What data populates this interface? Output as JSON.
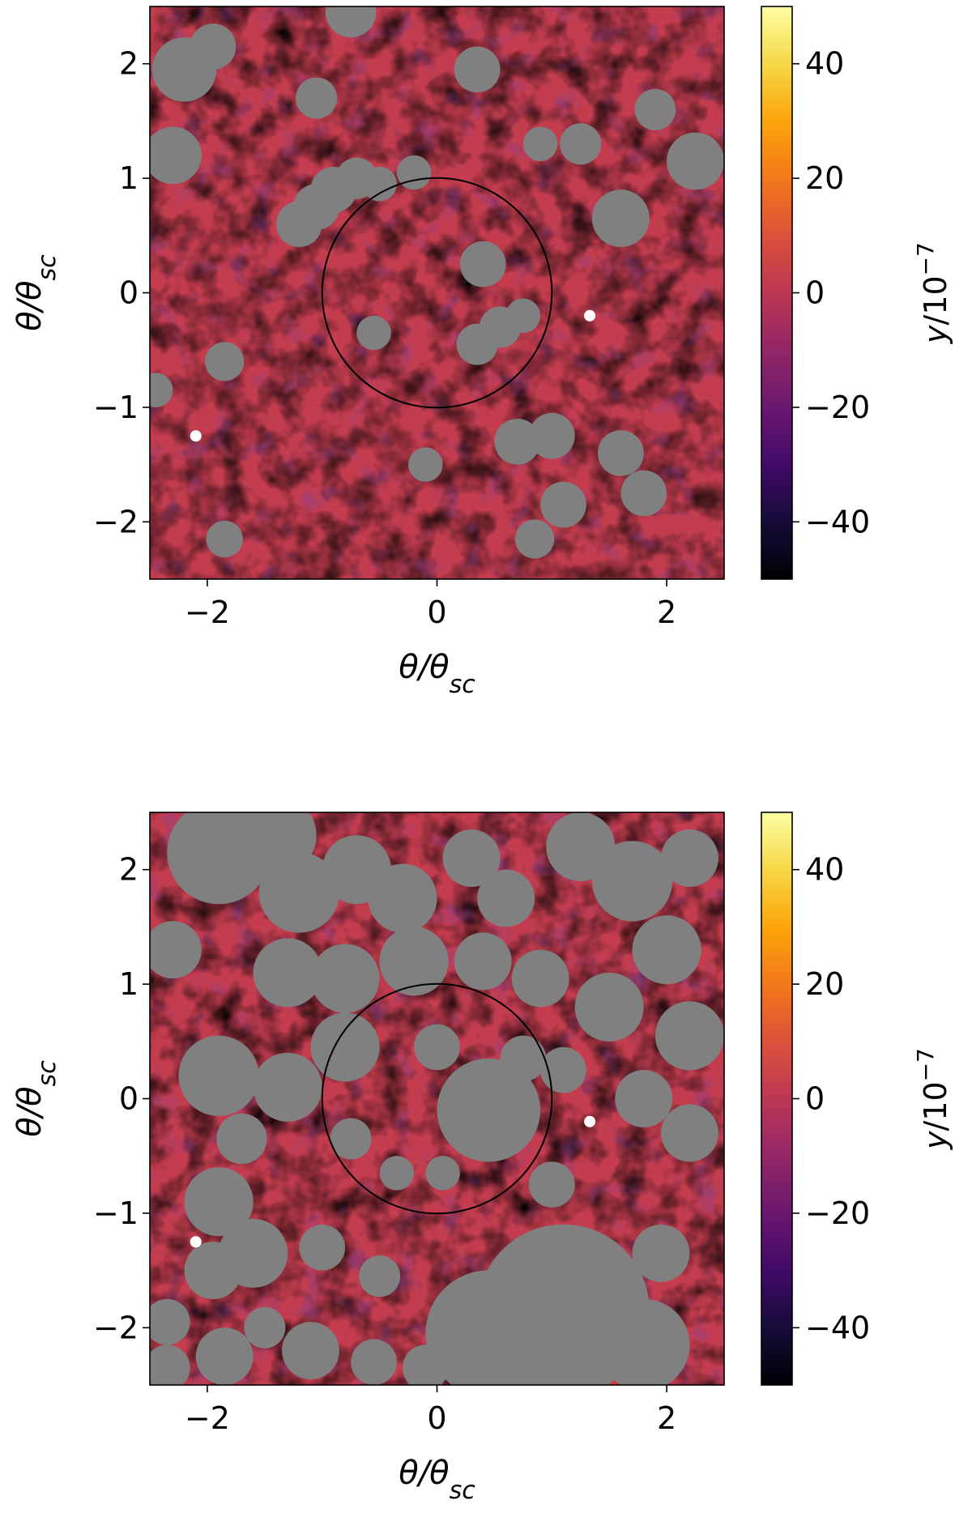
{
  "chart_data": [
    {
      "type": "heatmap",
      "panel": "top",
      "xlabel": "θ/θ_sc",
      "ylabel": "θ/θ_sc",
      "xlim": [
        -2.5,
        2.5
      ],
      "ylim": [
        -2.5,
        2.5
      ],
      "xticks": [
        -2,
        0,
        2
      ],
      "yticks": [
        -2,
        -1,
        0,
        1,
        2
      ],
      "colorbar": {
        "label": "y/10^-7",
        "range": [
          -50,
          50
        ],
        "ticks": [
          -40,
          -20,
          0,
          20,
          40
        ],
        "colormap": "inferno"
      },
      "circle": {
        "center": [
          0,
          0
        ],
        "radius": 1.0,
        "color": "#000000"
      },
      "mask_color": "#808080",
      "masks": [
        {
          "x": -2.2,
          "y": 1.95,
          "r": 0.28
        },
        {
          "x": -1.95,
          "y": 2.15,
          "r": 0.2
        },
        {
          "x": -1.05,
          "y": 1.7,
          "r": 0.18
        },
        {
          "x": -0.75,
          "y": 2.45,
          "r": 0.22
        },
        {
          "x": 0.35,
          "y": 1.95,
          "r": 0.2
        },
        {
          "x": 0.9,
          "y": 1.3,
          "r": 0.15
        },
        {
          "x": 1.25,
          "y": 1.3,
          "r": 0.18
        },
        {
          "x": 1.9,
          "y": 1.6,
          "r": 0.18
        },
        {
          "x": 2.25,
          "y": 1.15,
          "r": 0.25
        },
        {
          "x": -2.3,
          "y": 1.2,
          "r": 0.25
        },
        {
          "x": -1.2,
          "y": 0.6,
          "r": 0.2
        },
        {
          "x": -1.05,
          "y": 0.75,
          "r": 0.2
        },
        {
          "x": -0.9,
          "y": 0.9,
          "r": 0.2
        },
        {
          "x": -0.7,
          "y": 1.0,
          "r": 0.18
        },
        {
          "x": -0.5,
          "y": 0.95,
          "r": 0.15
        },
        {
          "x": -0.2,
          "y": 1.05,
          "r": 0.15
        },
        {
          "x": 0.4,
          "y": 0.25,
          "r": 0.2
        },
        {
          "x": 1.6,
          "y": 0.65,
          "r": 0.25
        },
        {
          "x": -0.55,
          "y": -0.35,
          "r": 0.15
        },
        {
          "x": 0.35,
          "y": -0.45,
          "r": 0.18
        },
        {
          "x": 0.55,
          "y": -0.3,
          "r": 0.18
        },
        {
          "x": 0.75,
          "y": -0.2,
          "r": 0.15
        },
        {
          "x": -1.85,
          "y": -0.6,
          "r": 0.17
        },
        {
          "x": -2.45,
          "y": -0.85,
          "r": 0.15
        },
        {
          "x": 0.7,
          "y": -1.3,
          "r": 0.2
        },
        {
          "x": 1.0,
          "y": -1.25,
          "r": 0.2
        },
        {
          "x": -0.1,
          "y": -1.5,
          "r": 0.15
        },
        {
          "x": 1.6,
          "y": -1.4,
          "r": 0.2
        },
        {
          "x": 1.8,
          "y": -1.75,
          "r": 0.2
        },
        {
          "x": 1.1,
          "y": -1.85,
          "r": 0.2
        },
        {
          "x": -1.85,
          "y": -2.15,
          "r": 0.16
        },
        {
          "x": 0.85,
          "y": -2.15,
          "r": 0.17
        }
      ],
      "white_spots": [
        {
          "x": 1.33,
          "y": -0.2
        },
        {
          "x": -2.1,
          "y": -1.25
        }
      ]
    },
    {
      "type": "heatmap",
      "panel": "bottom",
      "xlabel": "θ/θ_sc",
      "ylabel": "θ/θ_sc",
      "xlim": [
        -2.5,
        2.5
      ],
      "ylim": [
        -2.5,
        2.5
      ],
      "xticks": [
        -2,
        0,
        2
      ],
      "yticks": [
        -2,
        -1,
        0,
        1,
        2
      ],
      "colorbar": {
        "label": "y/10^-7",
        "range": [
          -50,
          50
        ],
        "ticks": [
          -40,
          -20,
          0,
          20,
          40
        ],
        "colormap": "inferno"
      },
      "circle": {
        "center": [
          0,
          0
        ],
        "radius": 1.0,
        "color": "#000000"
      },
      "mask_color": "#808080",
      "masks": [
        {
          "x": -1.9,
          "y": 2.15,
          "r": 0.45
        },
        {
          "x": -1.4,
          "y": 2.3,
          "r": 0.35
        },
        {
          "x": -1.2,
          "y": 1.8,
          "r": 0.35
        },
        {
          "x": -0.7,
          "y": 2.0,
          "r": 0.3
        },
        {
          "x": -0.3,
          "y": 1.75,
          "r": 0.3
        },
        {
          "x": 0.3,
          "y": 2.1,
          "r": 0.25
        },
        {
          "x": 0.6,
          "y": 1.75,
          "r": 0.25
        },
        {
          "x": 1.25,
          "y": 2.2,
          "r": 0.3
        },
        {
          "x": 1.7,
          "y": 1.9,
          "r": 0.35
        },
        {
          "x": 2.2,
          "y": 2.1,
          "r": 0.25
        },
        {
          "x": 2.0,
          "y": 1.3,
          "r": 0.3
        },
        {
          "x": -2.3,
          "y": 1.3,
          "r": 0.25
        },
        {
          "x": -1.3,
          "y": 1.1,
          "r": 0.3
        },
        {
          "x": -0.8,
          "y": 1.05,
          "r": 0.3
        },
        {
          "x": -0.2,
          "y": 1.2,
          "r": 0.3
        },
        {
          "x": 0.4,
          "y": 1.2,
          "r": 0.25
        },
        {
          "x": 0.9,
          "y": 1.05,
          "r": 0.25
        },
        {
          "x": 1.5,
          "y": 0.8,
          "r": 0.3
        },
        {
          "x": 2.2,
          "y": 0.55,
          "r": 0.3
        },
        {
          "x": -1.9,
          "y": 0.2,
          "r": 0.35
        },
        {
          "x": -1.3,
          "y": 0.1,
          "r": 0.3
        },
        {
          "x": -0.8,
          "y": 0.45,
          "r": 0.3
        },
        {
          "x": 0.0,
          "y": 0.45,
          "r": 0.2
        },
        {
          "x": 0.45,
          "y": -0.1,
          "r": 0.45
        },
        {
          "x": 0.75,
          "y": 0.35,
          "r": 0.2
        },
        {
          "x": 1.1,
          "y": 0.25,
          "r": 0.2
        },
        {
          "x": 1.8,
          "y": 0.0,
          "r": 0.25
        },
        {
          "x": 2.2,
          "y": -0.3,
          "r": 0.25
        },
        {
          "x": -1.7,
          "y": -0.35,
          "r": 0.22
        },
        {
          "x": -0.75,
          "y": -0.35,
          "r": 0.18
        },
        {
          "x": -0.35,
          "y": -0.65,
          "r": 0.15
        },
        {
          "x": 0.05,
          "y": -0.65,
          "r": 0.15
        },
        {
          "x": 1.0,
          "y": -0.75,
          "r": 0.2
        },
        {
          "x": -1.9,
          "y": -0.9,
          "r": 0.3
        },
        {
          "x": -1.6,
          "y": -1.35,
          "r": 0.3
        },
        {
          "x": -1.95,
          "y": -1.5,
          "r": 0.25
        },
        {
          "x": -1.0,
          "y": -1.3,
          "r": 0.2
        },
        {
          "x": -0.5,
          "y": -1.55,
          "r": 0.18
        },
        {
          "x": 1.1,
          "y": -1.85,
          "r": 0.75
        },
        {
          "x": 0.45,
          "y": -2.05,
          "r": 0.55
        },
        {
          "x": 1.8,
          "y": -2.15,
          "r": 0.4
        },
        {
          "x": 1.95,
          "y": -1.35,
          "r": 0.25
        },
        {
          "x": -2.35,
          "y": -1.95,
          "r": 0.2
        },
        {
          "x": -1.85,
          "y": -2.25,
          "r": 0.25
        },
        {
          "x": -1.1,
          "y": -2.2,
          "r": 0.25
        },
        {
          "x": -0.55,
          "y": -2.3,
          "r": 0.2
        },
        {
          "x": -1.5,
          "y": -2.0,
          "r": 0.18
        },
        {
          "x": -2.35,
          "y": -2.35,
          "r": 0.2
        },
        {
          "x": -0.1,
          "y": -2.35,
          "r": 0.2
        }
      ],
      "white_spots": [
        {
          "x": 1.33,
          "y": -0.2
        },
        {
          "x": -2.1,
          "y": -1.25
        }
      ]
    }
  ]
}
